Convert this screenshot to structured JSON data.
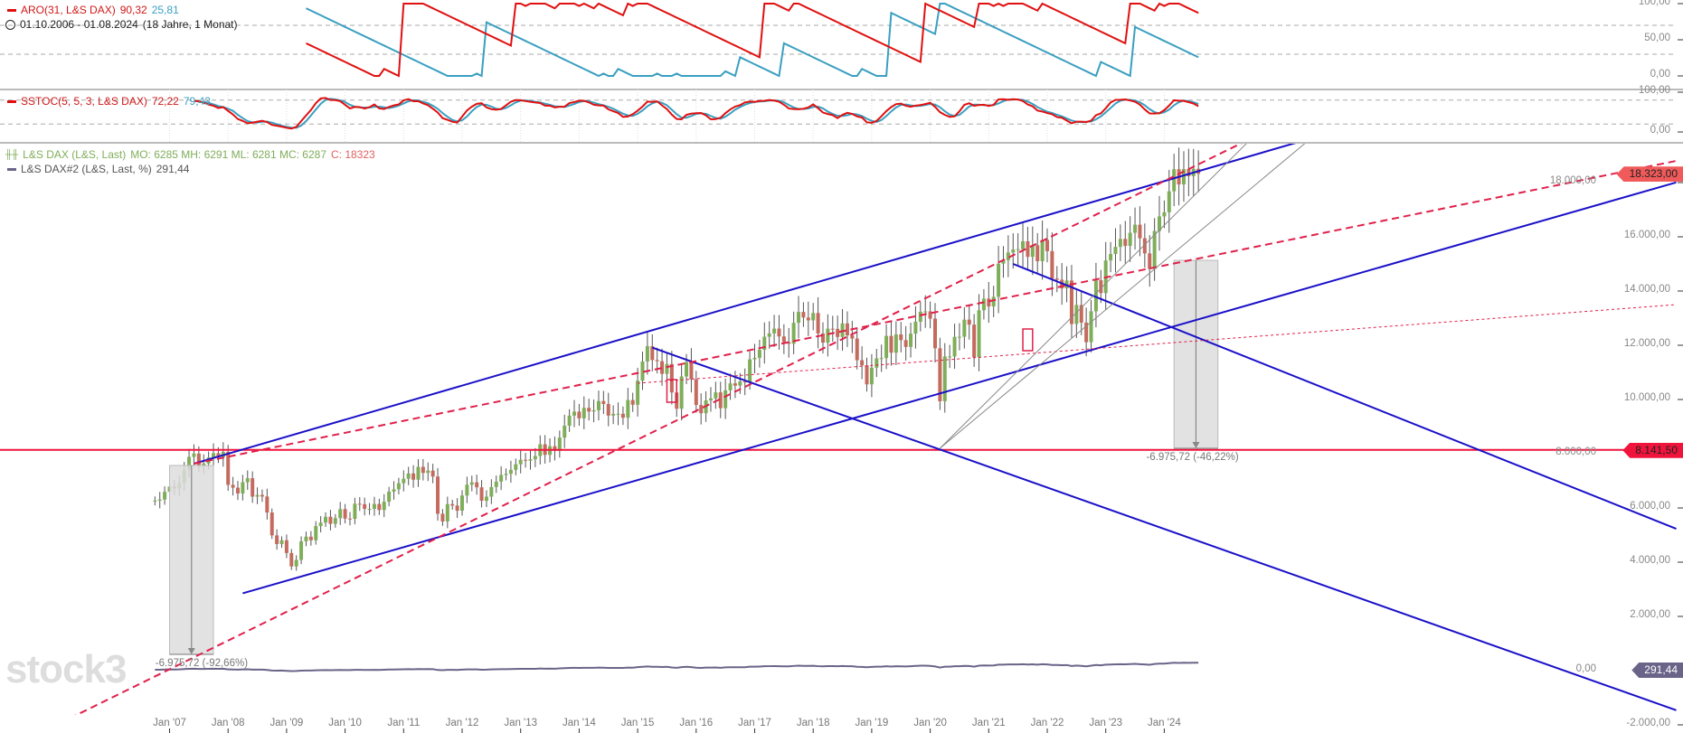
{
  "legend": {
    "aro": {
      "label": "ARO(31, L&S DAX)",
      "up": "90,32",
      "down": "25,81"
    },
    "range": {
      "dates": "01.10.2006 - 01.08.2024",
      "duration": "(18 Jahre, 1 Monat)"
    },
    "sstoc": {
      "label": "SSTOC(5, 5, 3, L&S DAX)",
      "k": "72,22",
      "d": "79,43"
    },
    "main": {
      "label": "L&S DAX (L&S, Last)",
      "ohlc": "MO: 6285 MH: 6291 ML: 6281 MC: 6287",
      "close": "C: 18323"
    },
    "dax2": {
      "label": "L&S DAX#2 (L&S, Last, %)",
      "value": "291,44"
    }
  },
  "logo": "stock3",
  "colors": {
    "up": "#7fae5a",
    "down": "#c46a5e",
    "aro_up": "#e01010",
    "aro_down": "#3a9fc0",
    "trend_blue": "#1a10c8",
    "trend_red": "#e0204a",
    "dax2": "#6a6488"
  },
  "chart_data": {
    "type": "candlestick",
    "x_type": "date",
    "start": "2006-10",
    "interval": "month",
    "closes": [
      6268,
      6309,
      6597,
      6789,
      6716,
      6917,
      7409,
      7883,
      8007,
      7584,
      7638,
      7862,
      8020,
      7871,
      8067,
      6852,
      6748,
      6535,
      6949,
      7097,
      6418,
      6479,
      6422,
      5831,
      4988,
      4669,
      4810,
      4338,
      3843,
      4085,
      4770,
      4941,
      4809,
      5332,
      5458,
      5675,
      5415,
      5625,
      5957,
      5608,
      5598,
      6154,
      6136,
      5965,
      5966,
      6148,
      5925,
      6229,
      6601,
      6688,
      6914,
      7077,
      7272,
      7041,
      7514,
      7294,
      7376,
      7159,
      5785,
      5502,
      6141,
      6089,
      5898,
      6458,
      6856,
      6947,
      6761,
      6264,
      6416,
      6772,
      6970,
      7216,
      7260,
      7405,
      7612,
      7776,
      7741,
      7795,
      7914,
      8348,
      7959,
      8276,
      8103,
      8594,
      9033,
      9405,
      9552,
      9306,
      9692,
      9556,
      9603,
      9943,
      9833,
      9407,
      9470,
      9474,
      9326,
      9980,
      9806,
      10694,
      11402,
      11966,
      11454,
      11413,
      10945,
      11309,
      10259,
      9660,
      10850,
      11382,
      10743,
      9798,
      9495,
      9966,
      10039,
      10263,
      9680,
      10337,
      10593,
      10511,
      10665,
      10640,
      11481,
      11535,
      11834,
      12313,
      12438,
      12615,
      12325,
      12118,
      12056,
      12829,
      13230,
      13024,
      12918,
      13189,
      12436,
      12097,
      12612,
      12605,
      12306,
      12806,
      12364,
      12247,
      11448,
      11257,
      10559,
      11173,
      11516,
      11526,
      12344,
      11727,
      12399,
      12189,
      11939,
      12428,
      12867,
      13236,
      13249,
      12982,
      11890,
      9936,
      11587,
      11587,
      12311,
      12313,
      12945,
      12761,
      11556,
      13291,
      13719,
      13432,
      13786,
      15008,
      15136,
      15421,
      15531,
      15544,
      15835,
      15261,
      15689,
      15100,
      15885,
      15471,
      14461,
      14415,
      14098,
      14388,
      12784,
      13484,
      12835,
      12114,
      13253,
      14397,
      13924,
      15128,
      15365,
      15629,
      15922,
      15664,
      16148,
      16447,
      15947,
      15387,
      14810,
      16215,
      16752,
      16904,
      17678,
      18492,
      17932,
      18498,
      18235,
      18508,
      18323
    ],
    "y_axis": {
      "range": [
        -2000,
        19500
      ],
      "ticks": [
        {
          "v": 18000,
          "label": "18.000,00"
        },
        {
          "v": 16000,
          "label": "16.000,00"
        },
        {
          "v": 14000,
          "label": "14.000,00"
        },
        {
          "v": 12000,
          "label": "12.000,00"
        },
        {
          "v": 10000,
          "label": "10.000,00"
        },
        {
          "v": 8000,
          "label": "8.000,00"
        },
        {
          "v": 6000,
          "label": "6.000,00"
        },
        {
          "v": 4000,
          "label": "4.000,00"
        },
        {
          "v": 2000,
          "label": "2.000,00"
        },
        {
          "v": 0,
          "label": "0,00"
        },
        {
          "v": -2000,
          "label": "-2.000,00"
        }
      ]
    },
    "x_ticks": [
      "Jan '07",
      "Jan '08",
      "Jan '09",
      "Jan '10",
      "Jan '11",
      "Jan '12",
      "Jan '13",
      "Jan '14",
      "Jan '15",
      "Jan '16",
      "Jan '17",
      "Jan '18",
      "Jan '19",
      "Jan '20",
      "Jan '21",
      "Jan '22",
      "Jan '23",
      "Jan '24"
    ],
    "aro_axis": [
      {
        "v": 100,
        "label": "100,00"
      },
      {
        "v": 50,
        "label": "50,00"
      },
      {
        "v": 0,
        "label": "0,00"
      }
    ],
    "aro_levels": [
      70,
      30
    ],
    "sstoc_axis": [
      {
        "v": 100,
        "label": "100,00"
      },
      {
        "v": 0,
        "label": "0,00"
      }
    ],
    "sstoc_levels": [
      80,
      20
    ],
    "price_tags": [
      {
        "value": 18323,
        "label": "18.323,00",
        "color": "#f05a5a"
      },
      {
        "value": 8141.5,
        "label": "8.141,50",
        "color": "#f0143c"
      }
    ],
    "dax2_tag": {
      "label": "291,44",
      "color": "#6a6488"
    },
    "horizontal_line": 8141.5,
    "trendlines": [
      {
        "from": [
          "2007-06",
          7633
        ],
        "to": [
          "2026-04",
          19467
        ],
        "color": "blue",
        "style": "solid"
      },
      {
        "from": [
          "2008-04",
          2853
        ],
        "to": [
          "2032-10",
          18007
        ],
        "color": "blue",
        "style": "solid"
      },
      {
        "from": [
          "2015-04",
          11913
        ],
        "to": [
          "2032-10",
          -1460
        ],
        "color": "blue",
        "style": "solid"
      },
      {
        "from": [
          "2021-06",
          15000
        ],
        "to": [
          "2032-10",
          5233
        ],
        "color": "blue",
        "style": "solid"
      },
      {
        "from": [
          "2004-10",
          -2333
        ],
        "to": [
          "2025-05",
          19467
        ],
        "color": "red",
        "style": "dashed"
      },
      {
        "from": [
          "2007-06",
          7633
        ],
        "to": [
          "2032-10",
          18800
        ],
        "color": "red",
        "style": "dashed"
      },
      {
        "from": [
          "2015-01",
          10600
        ],
        "to": [
          "2032-10",
          13500
        ],
        "color": "red",
        "style": "thin-dashed"
      },
      {
        "from": [
          "2020-03",
          8200
        ],
        "to": [
          "2025-06",
          19467
        ],
        "color": "grey",
        "style": "thin"
      },
      {
        "from": [
          "2020-03",
          8200
        ],
        "to": [
          "2026-06",
          19467
        ],
        "color": "grey",
        "style": "thin"
      }
    ],
    "measurements": [
      {
        "from": [
          "2007-01",
          7567
        ],
        "to": [
          "2007-10",
          600
        ],
        "label": "-6.975,72 (-92,66%)"
      },
      {
        "from": [
          "2024-03",
          15133
        ],
        "to": [
          "2024-12",
          8200
        ],
        "label": "-6.975,72 (-46,22%)"
      }
    ],
    "boxes": [
      {
        "from": [
          "2015-07",
          10733
        ],
        "to": [
          "2015-09",
          9900
        ]
      },
      {
        "from": [
          "2021-08",
          12600
        ],
        "to": [
          "2021-10",
          11800
        ]
      }
    ]
  }
}
